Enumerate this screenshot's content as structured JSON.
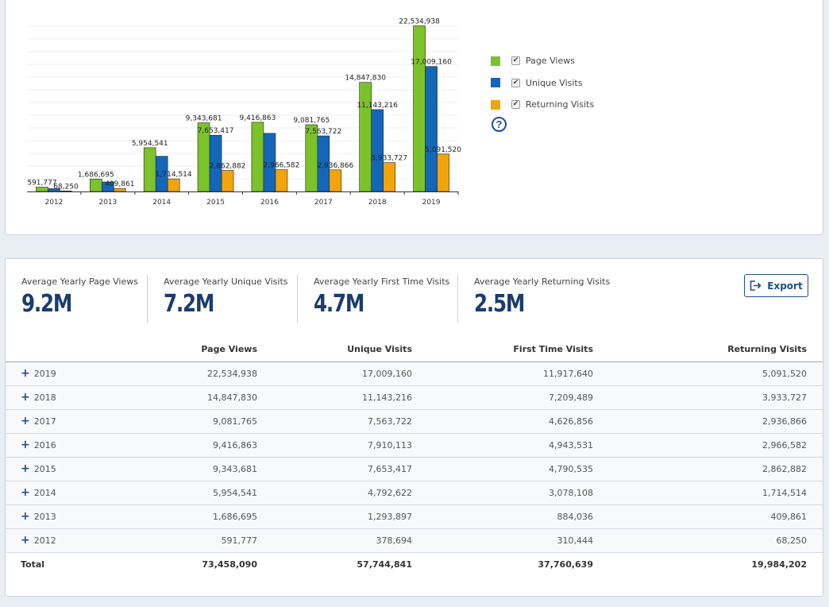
{
  "chart_data": {
    "type": "bar",
    "categories": [
      "2012",
      "2013",
      "2014",
      "2015",
      "2016",
      "2017",
      "2018",
      "2019"
    ],
    "series": [
      {
        "name": "Page Views",
        "color": "#7cc22a",
        "values": [
          591777,
          1686695,
          5954541,
          9343681,
          9416863,
          9081765,
          14847830,
          22534938
        ]
      },
      {
        "name": "Unique Visits",
        "color": "#1466b8",
        "values": [
          378694,
          1293897,
          4792622,
          7653417,
          7910113,
          7563722,
          11143216,
          17009160
        ]
      },
      {
        "name": "Returning Visits",
        "color": "#f2a40c",
        "values": [
          68250,
          409861,
          1714514,
          2862882,
          2966582,
          2936866,
          3933727,
          5091520
        ]
      }
    ],
    "labels": [
      [
        "591,777",
        "1,686,695",
        "5,954,541",
        "9,343,681",
        "9,416,863",
        "9,081,765",
        "14,847,830",
        "22,534,938"
      ],
      [
        "",
        "",
        "",
        "7,653,417",
        "",
        "7,563,722",
        "11,143,216",
        "17,009,160"
      ],
      [
        "68,250",
        "409,861",
        "1,714,514",
        "2,862,882",
        "2,966,582",
        "2,936,866",
        "3,933,727",
        "5,091,520"
      ]
    ],
    "ylim": [
      0,
      24000000
    ],
    "grid": true,
    "legend_position": "right"
  },
  "legend": {
    "items": [
      {
        "label": "Page Views",
        "color": "#7cc22a",
        "checked": "✔"
      },
      {
        "label": "Unique Visits",
        "color": "#1466b8",
        "checked": "✔"
      },
      {
        "label": "Returning Visits",
        "color": "#f2a40c",
        "checked": "✔"
      }
    ],
    "help_icon": "?"
  },
  "summary": [
    {
      "label": "Average Yearly Page Views",
      "value": "9.2M"
    },
    {
      "label": "Average Yearly Unique Visits",
      "value": "7.2M"
    },
    {
      "label": "Average Yearly First Time Visits",
      "value": "4.7M"
    },
    {
      "label": "Average Yearly Returning Visits",
      "value": "2.5M"
    }
  ],
  "export_label": "Export",
  "table": {
    "columns": [
      "",
      "Page Views",
      "Unique Visits",
      "First Time Visits",
      "Returning Visits"
    ],
    "expand_icon": "+",
    "rows": [
      {
        "year": "2019",
        "page_views": "22,534,938",
        "unique": "17,009,160",
        "first_time": "11,917,640",
        "returning": "5,091,520"
      },
      {
        "year": "2018",
        "page_views": "14,847,830",
        "unique": "11,143,216",
        "first_time": "7,209,489",
        "returning": "3,933,727"
      },
      {
        "year": "2017",
        "page_views": "9,081,765",
        "unique": "7,563,722",
        "first_time": "4,626,856",
        "returning": "2,936,866"
      },
      {
        "year": "2016",
        "page_views": "9,416,863",
        "unique": "7,910,113",
        "first_time": "4,943,531",
        "returning": "2,966,582"
      },
      {
        "year": "2015",
        "page_views": "9,343,681",
        "unique": "7,653,417",
        "first_time": "4,790,535",
        "returning": "2,862,882"
      },
      {
        "year": "2014",
        "page_views": "5,954,541",
        "unique": "4,792,622",
        "first_time": "3,078,108",
        "returning": "1,714,514"
      },
      {
        "year": "2013",
        "page_views": "1,686,695",
        "unique": "1,293,897",
        "first_time": "884,036",
        "returning": "409,861"
      },
      {
        "year": "2012",
        "page_views": "591,777",
        "unique": "378,694",
        "first_time": "310,444",
        "returning": "68,250"
      }
    ],
    "total": {
      "label": "Total",
      "page_views": "73,458,090",
      "unique": "57,744,841",
      "first_time": "37,760,639",
      "returning": "19,984,202"
    }
  }
}
